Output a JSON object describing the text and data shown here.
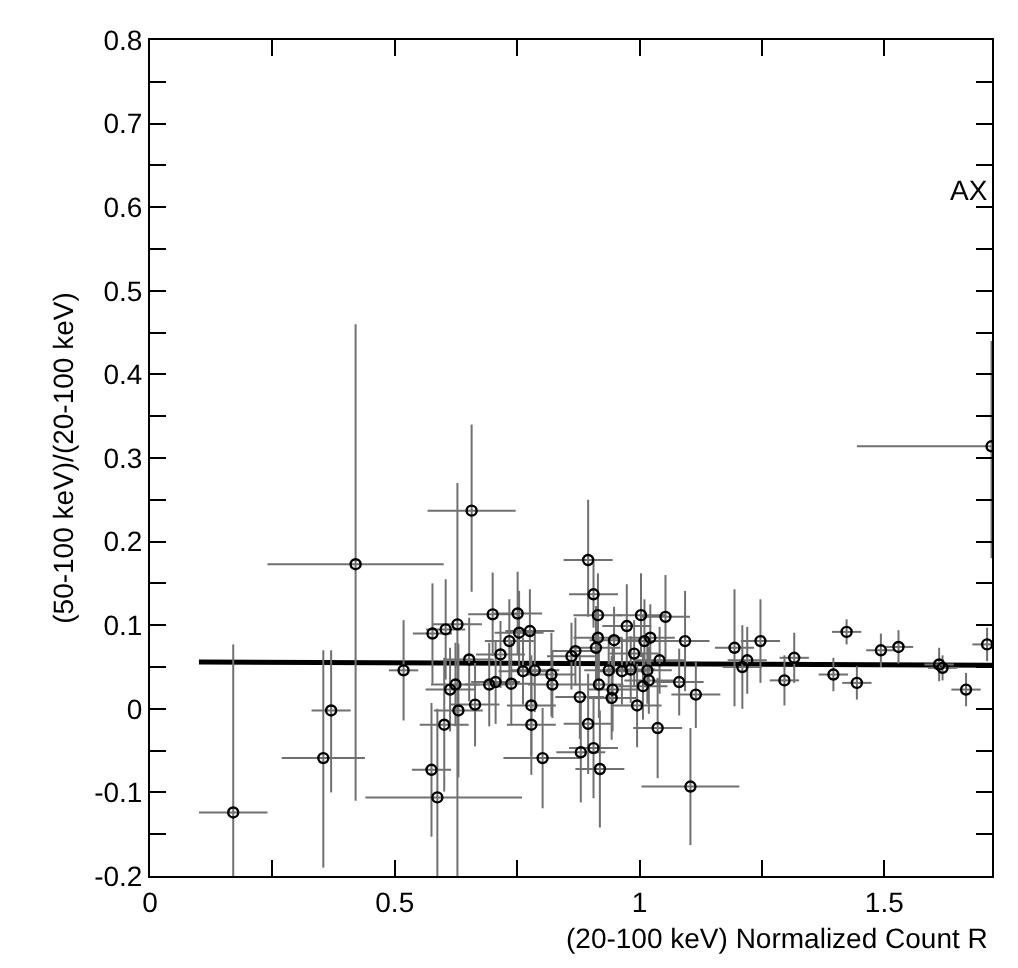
{
  "chart_data": {
    "type": "scatter",
    "xlabel": "(20-100 keV) Normalized Count R",
    "ylabel": "(50-100 keV)/(20-100 keV)",
    "annotations": [
      "AX"
    ],
    "xlim": [
      0,
      1.72
    ],
    "ylim": [
      -0.2,
      0.8
    ],
    "xticks": [
      0,
      {
        "value": 0.25,
        "label": null
      },
      0.5,
      {
        "value": 0.75,
        "label": null
      },
      1,
      {
        "value": 1.25,
        "label": null
      },
      1.5
    ],
    "yticks": [
      -0.2,
      {
        "value": -0.15,
        "label": null
      },
      -0.1,
      {
        "value": -0.05,
        "label": null
      },
      0,
      {
        "value": 0.05,
        "label": null
      },
      0.1,
      {
        "value": 0.15,
        "label": null
      },
      0.2,
      {
        "value": 0.25,
        "label": null
      },
      0.3,
      {
        "value": 0.35,
        "label": null
      },
      0.4,
      {
        "value": 0.45,
        "label": null
      },
      0.5,
      {
        "value": 0.55,
        "label": null
      },
      0.6,
      {
        "value": 0.65,
        "label": null
      },
      0.7,
      {
        "value": 0.75,
        "label": null
      },
      0.8
    ],
    "series": [
      {
        "color": "#000000",
        "marker": "circle",
        "x": [
          0.17,
          0.354,
          0.37,
          0.42,
          0.518,
          0.575,
          0.587,
          0.577,
          0.604,
          0.628,
          0.601,
          0.613,
          0.624,
          0.63,
          0.652,
          0.657,
          0.664,
          0.7,
          0.706,
          0.716,
          0.693,
          0.734,
          0.751,
          0.754,
          0.738,
          0.762,
          0.776,
          0.779,
          0.779,
          0.786,
          0.802,
          0.82,
          0.822,
          0.861,
          0.869,
          0.878,
          0.88,
          0.895,
          0.895,
          0.906,
          0.906,
          0.911,
          0.915,
          0.915,
          0.917,
          0.919,
          0.937,
          0.943,
          0.945,
          0.948,
          0.964,
          0.974,
          0.982,
          0.989,
          0.995,
          1.003,
          1.007,
          1.01,
          1.016,
          1.019,
          1.022,
          1.037,
          1.041,
          1.053,
          1.081,
          1.093,
          1.104,
          1.115,
          1.194,
          1.21,
          1.22,
          1.247,
          1.296,
          1.316,
          1.396,
          1.423,
          1.444,
          1.493,
          1.529,
          1.612,
          1.619,
          1.667,
          1.71,
          1.719
        ],
        "values": [
          -0.124,
          -0.059,
          -0.002,
          0.173,
          0.046,
          -0.073,
          -0.106,
          0.09,
          0.095,
          0.101,
          -0.019,
          0.023,
          0.029,
          -0.002,
          0.059,
          0.237,
          0.005,
          0.113,
          0.032,
          0.065,
          0.029,
          0.081,
          0.114,
          0.091,
          0.03,
          0.045,
          0.093,
          0.004,
          -0.019,
          0.046,
          -0.059,
          0.041,
          0.029,
          0.063,
          0.069,
          0.014,
          -0.052,
          0.178,
          -0.018,
          0.137,
          -0.047,
          0.073,
          0.112,
          0.085,
          0.029,
          -0.072,
          0.046,
          0.013,
          0.023,
          0.082,
          0.045,
          0.099,
          0.047,
          0.066,
          0.004,
          0.112,
          0.027,
          0.081,
          0.046,
          0.034,
          0.085,
          -0.023,
          0.058,
          0.11,
          0.032,
          0.081,
          -0.093,
          0.017,
          0.073,
          0.05,
          0.058,
          0.081,
          0.034,
          0.061,
          0.041,
          0.092,
          0.031,
          0.07,
          0.074,
          0.053,
          0.049,
          0.023,
          0.077,
          0.314
        ],
        "errors": [
          [
            -0.2,
            0.077
          ],
          [
            -0.19,
            0.07
          ],
          [
            -0.1,
            0.07
          ],
          [
            -0.11,
            0.46
          ],
          0.06,
          0.08,
          [
            -0.2,
            0.0
          ],
          0.06,
          0.06,
          [
            -0.2,
            0.27
          ],
          0.08,
          0.05,
          0.05,
          0.08,
          0.05,
          [
            0.14,
            0.34
          ],
          0.05,
          0.05,
          0.05,
          0.04,
          0.05,
          0.05,
          0.05,
          0.05,
          0.05,
          0.04,
          0.05,
          0.06,
          0.06,
          0.05,
          0.06,
          0.05,
          0.04,
          0.04,
          0.04,
          0.05,
          0.06,
          [
            0.11,
            0.25
          ],
          0.06,
          0.04,
          0.06,
          0.05,
          0.05,
          0.05,
          0.04,
          0.07,
          0.04,
          0.05,
          0.05,
          0.04,
          0.04,
          0.05,
          0.04,
          0.04,
          0.05,
          0.05,
          0.04,
          0.05,
          0.04,
          0.04,
          0.04,
          0.06,
          0.04,
          0.05,
          0.04,
          0.06,
          0.07,
          0.04,
          0.07,
          0.05,
          0.04,
          0.05,
          0.03,
          0.03,
          0.02,
          0.015,
          0.02,
          0.02,
          0.02,
          0.02,
          0.015,
          0.02,
          0.02,
          [
            0.18,
            0.44
          ]
        ],
        "xerrors": [
          0.07,
          0.085,
          0.04,
          0.18,
          0.03,
          0.04,
          [
            0.44,
            0.76
          ],
          0.04,
          0.04,
          0.05,
          0.05,
          0.05,
          0.05,
          0.05,
          0.05,
          0.09,
          0.05,
          0.05,
          0.05,
          0.05,
          0.05,
          0.05,
          0.05,
          0.05,
          0.05,
          0.05,
          0.05,
          0.05,
          0.05,
          0.05,
          0.08,
          0.05,
          0.05,
          0.05,
          0.05,
          0.05,
          0.05,
          0.05,
          0.05,
          0.05,
          0.05,
          0.05,
          0.05,
          0.05,
          0.05,
          0.05,
          0.05,
          0.05,
          0.05,
          0.05,
          0.05,
          0.05,
          0.05,
          0.05,
          0.05,
          0.05,
          0.05,
          0.05,
          0.05,
          0.05,
          0.05,
          0.05,
          0.05,
          0.05,
          0.05,
          0.05,
          0.1,
          0.05,
          0.04,
          0.04,
          0.04,
          0.04,
          0.03,
          0.03,
          0.03,
          0.03,
          0.03,
          0.03,
          0.03,
          0.03,
          0.03,
          0.03,
          0.03,
          [
            1.444,
            1.72
          ]
        ]
      },
      {
        "type": "line",
        "color": "#000000",
        "marker": "none",
        "line_style": "solid",
        "x": [
          0.1,
          1.72
        ],
        "values": [
          0.056,
          0.052
        ]
      }
    ]
  }
}
